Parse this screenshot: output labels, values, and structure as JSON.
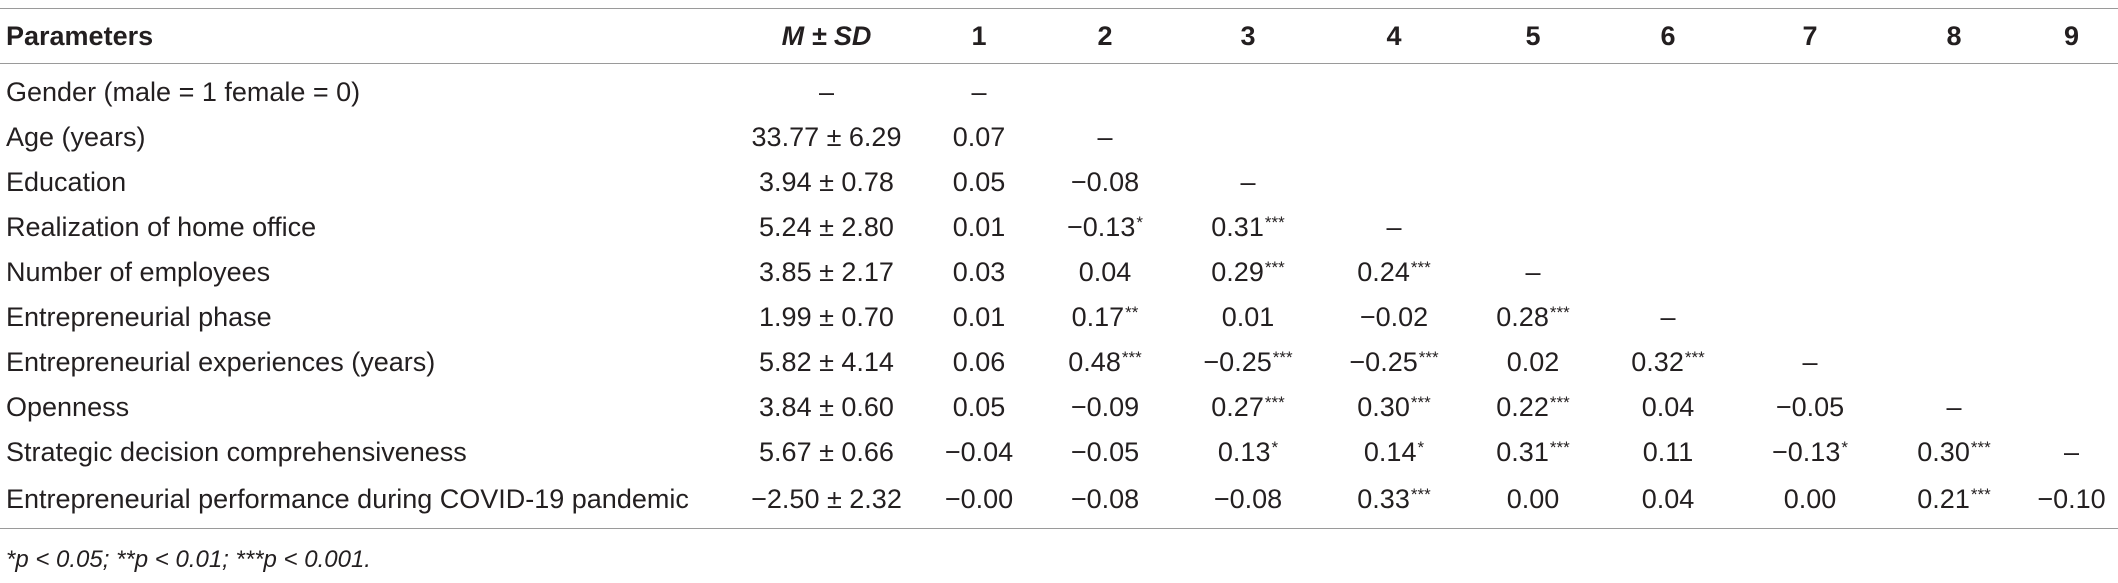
{
  "table": {
    "headers": {
      "parameters": "Parameters",
      "msd": "M ± SD",
      "c1": "1",
      "c2": "2",
      "c3": "3",
      "c4": "4",
      "c5": "5",
      "c6": "6",
      "c7": "7",
      "c8": "8",
      "c9": "9"
    },
    "rows": [
      {
        "param": "Gender (male = 1 female = 0)",
        "msd": "–",
        "cells": [
          "–",
          "",
          "",
          "",
          "",
          "",
          "",
          "",
          ""
        ],
        "sig": [
          "",
          "",
          "",
          "",
          "",
          "",
          "",
          "",
          ""
        ]
      },
      {
        "param": "Age (years)",
        "msd": "33.77 ± 6.29",
        "cells": [
          "0.07",
          "–",
          "",
          "",
          "",
          "",
          "",
          "",
          ""
        ],
        "sig": [
          "",
          "",
          "",
          "",
          "",
          "",
          "",
          "",
          ""
        ]
      },
      {
        "param": "Education",
        "msd": "3.94 ± 0.78",
        "cells": [
          "0.05",
          "−0.08",
          "–",
          "",
          "",
          "",
          "",
          "",
          ""
        ],
        "sig": [
          "",
          "",
          "",
          "",
          "",
          "",
          "",
          "",
          ""
        ]
      },
      {
        "param": "Realization of home office",
        "msd": "5.24 ± 2.80",
        "cells": [
          "0.01",
          "−0.13",
          "0.31",
          "–",
          "",
          "",
          "",
          "",
          ""
        ],
        "sig": [
          "",
          "*",
          "***",
          "",
          "",
          "",
          "",
          "",
          ""
        ]
      },
      {
        "param": "Number of employees",
        "msd": "3.85 ± 2.17",
        "cells": [
          "0.03",
          "0.04",
          "0.29",
          "0.24",
          "–",
          "",
          "",
          "",
          ""
        ],
        "sig": [
          "",
          "",
          "***",
          "***",
          "",
          "",
          "",
          "",
          ""
        ]
      },
      {
        "param": "Entrepreneurial phase",
        "msd": "1.99 ± 0.70",
        "cells": [
          "0.01",
          "0.17",
          "0.01",
          "−0.02",
          "0.28",
          "–",
          "",
          "",
          ""
        ],
        "sig": [
          "",
          "**",
          "",
          "",
          "***",
          "",
          "",
          "",
          ""
        ]
      },
      {
        "param": "Entrepreneurial experiences (years)",
        "msd": "5.82 ± 4.14",
        "cells": [
          "0.06",
          "0.48",
          "−0.25",
          "−0.25",
          "0.02",
          "0.32",
          "–",
          "",
          ""
        ],
        "sig": [
          "",
          "***",
          "***",
          "***",
          "",
          "***",
          "",
          "",
          ""
        ]
      },
      {
        "param": "Openness",
        "msd": "3.84 ± 0.60",
        "cells": [
          "0.05",
          "−0.09",
          "0.27",
          "0.30",
          "0.22",
          "0.04",
          "−0.05",
          "–",
          ""
        ],
        "sig": [
          "",
          "",
          "***",
          "***",
          "***",
          "",
          "",
          "",
          ""
        ]
      },
      {
        "param": "Strategic decision comprehensiveness",
        "msd": "5.67 ± 0.66",
        "cells": [
          "−0.04",
          "−0.05",
          "0.13",
          "0.14",
          "0.31",
          "0.11",
          "−0.13",
          "0.30",
          "–"
        ],
        "sig": [
          "",
          "",
          "*",
          "*",
          "***",
          "",
          "*",
          "***",
          ""
        ]
      },
      {
        "param": "Entrepreneurial performance during COVID-19 pandemic",
        "msd": "−2.50 ± 2.32",
        "cells": [
          "−0.00",
          "−0.08",
          "−0.08",
          "0.33",
          "0.00",
          "0.04",
          "0.00",
          "0.21",
          "−0.10"
        ],
        "sig": [
          "",
          "",
          "",
          "***",
          "",
          "",
          "",
          "***",
          ""
        ]
      }
    ]
  },
  "footnote": "*p < 0.05; **p < 0.01; ***p < 0.001."
}
